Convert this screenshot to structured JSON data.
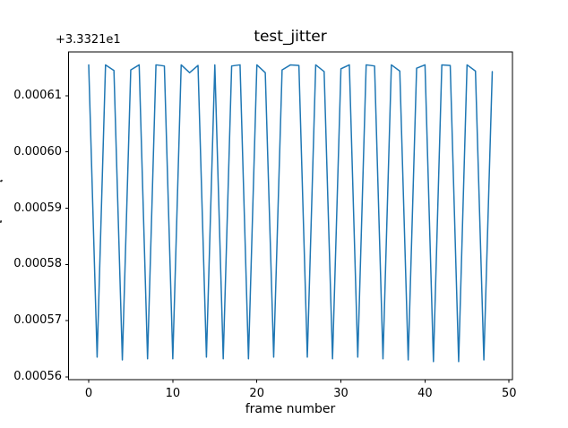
{
  "figure": {
    "background": "#ffffff",
    "text_color": "#000000",
    "spine_color": "#000000"
  },
  "chart_data": {
    "type": "line",
    "title": "test_jitter",
    "xlabel": "frame number",
    "y_offset_text": "+3.3321e1",
    "y_offset_value": 33.321,
    "line_color": "#1f77b4",
    "line_width": 1.5,
    "marker": "none",
    "grid": false,
    "legend": "none",
    "xlim": [
      -2.4,
      50.4
    ],
    "ylim": [
      0.0005595,
      0.0006178
    ],
    "xticks": [
      0,
      10,
      20,
      30,
      40,
      50
    ],
    "xtick_labels": [
      "0",
      "10",
      "20",
      "30",
      "40",
      "50"
    ],
    "yticks": [
      0.00056,
      0.00057,
      0.00058,
      0.00059,
      0.0006,
      0.00061
    ],
    "ytick_labels": [
      "0.00056",
      "0.00057",
      "0.00058",
      "0.00059",
      "0.00060",
      "0.00061"
    ],
    "x": [
      0,
      1,
      2,
      3,
      4,
      5,
      6,
      7,
      8,
      9,
      10,
      11,
      12,
      13,
      14,
      15,
      16,
      17,
      18,
      19,
      20,
      21,
      22,
      23,
      24,
      25,
      26,
      27,
      28,
      29,
      30,
      31,
      32,
      33,
      34,
      35,
      36,
      37,
      38,
      39,
      40,
      41,
      42,
      43,
      44,
      45,
      46,
      47,
      48
    ],
    "y": [
      0.0006155,
      0.0005635,
      0.0006155,
      0.0006145,
      0.000563,
      0.0006146,
      0.0006155,
      0.0005632,
      0.0006155,
      0.0006153,
      0.0005632,
      0.0006155,
      0.0006141,
      0.0006154,
      0.0005635,
      0.0006155,
      0.0005632,
      0.0006153,
      0.0006155,
      0.0005632,
      0.0006155,
      0.0006141,
      0.0005635,
      0.0006146,
      0.0006155,
      0.0006154,
      0.0005635,
      0.0006155,
      0.0006143,
      0.0005632,
      0.0006148,
      0.0006155,
      0.0005635,
      0.0006155,
      0.0006153,
      0.0005632,
      0.0006155,
      0.0006144,
      0.000563,
      0.0006149,
      0.0006155,
      0.0005627,
      0.0006155,
      0.0006154,
      0.0005627,
      0.0006155,
      0.0006144,
      0.000563,
      0.0006143
    ]
  }
}
